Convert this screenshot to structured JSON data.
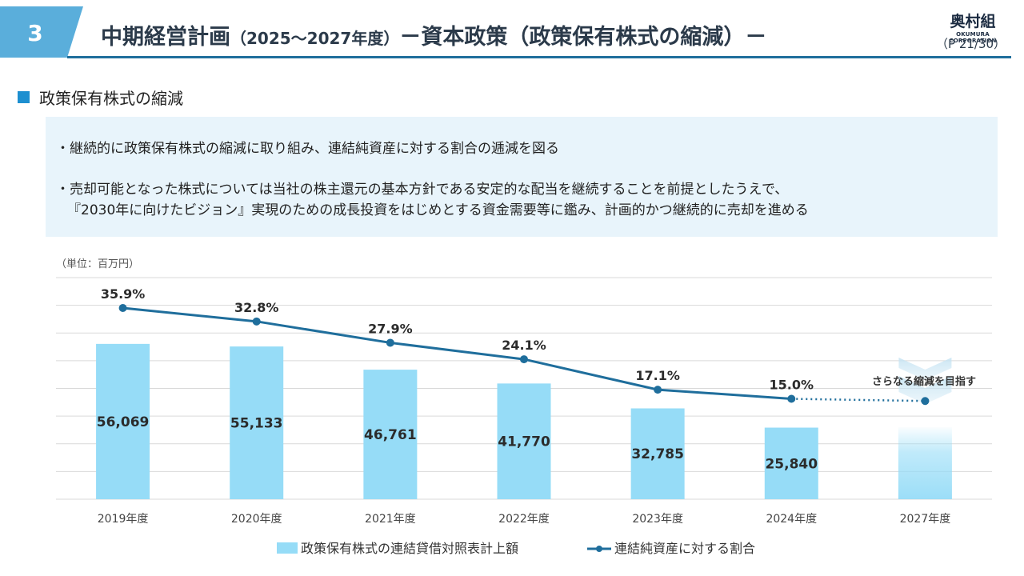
{
  "header": {
    "section_number": "3",
    "title_main": "中期経営計画",
    "title_sub": "（2025～2027年度）",
    "title_tail": "－資本政策（政策保有株式の縮減）－",
    "page": "（P 21/30）",
    "logo_main": "奥村組",
    "logo_sub": "OKUMURA CORPORATION"
  },
  "section_title": "政策保有株式の縮減",
  "notes": [
    "・継続的に政策保有株式の縮減に取り組み、連結純資産に対する割合の逓減を図る",
    "・売却可能となった株式については当社の株主還元の基本方針である安定的な配当を継続することを前提としたうえで、",
    "『2030年に向けたビジョン』実現のための成長投資をはじめとする資金需要等に鑑み、計画的かつ継続的に売却を進める"
  ],
  "colors": {
    "bar": "#96dcf7",
    "line": "#1f6e9c",
    "accent": "#1d8fd0",
    "note_bg": "#e8f4fb"
  },
  "chart_data": {
    "type": "bar+line",
    "unit_label": "（単位：百万円）",
    "categories": [
      "2019年度",
      "2020年度",
      "2021年度",
      "2022年度",
      "2023年度",
      "2024年度",
      "2027年度"
    ],
    "series": [
      {
        "name": "政策保有株式の連結貸借対照表計上額",
        "type": "bar",
        "values": [
          56069,
          55133,
          46761,
          41770,
          32785,
          25840,
          null
        ],
        "labels": [
          "56,069",
          "55,133",
          "46,761",
          "41,770",
          "32,785",
          "25,840",
          ""
        ],
        "target_bar_value": 26000
      },
      {
        "name": "連結純資産に対する割合",
        "type": "line",
        "values": [
          35.9,
          32.8,
          27.9,
          24.1,
          17.1,
          15.0,
          14.5
        ],
        "labels": [
          "35.9%",
          "32.8%",
          "27.9%",
          "24.1%",
          "17.1%",
          "15.0%",
          ""
        ],
        "projection_from_index": 5
      }
    ],
    "annotation": "さらなる縮減を目指す",
    "grid": true,
    "legend_position": "bottom"
  }
}
